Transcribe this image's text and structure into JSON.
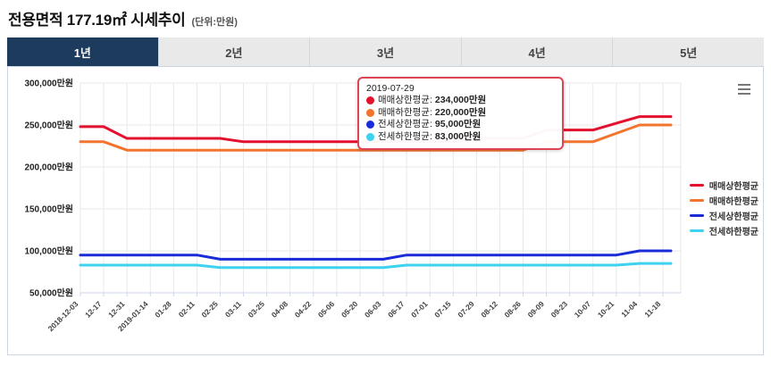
{
  "page": {
    "title": "전용면적 177.19㎡ 시세추이",
    "unit_note": "(단위:만원)"
  },
  "tabs": [
    {
      "label": "1년",
      "active": true
    },
    {
      "label": "2년",
      "active": false
    },
    {
      "label": "3년",
      "active": false
    },
    {
      "label": "4년",
      "active": false
    },
    {
      "label": "5년",
      "active": false
    }
  ],
  "tooltip": {
    "date": "2019-07-29",
    "rows": [
      {
        "label": "매매상한평균:",
        "value": "234,000만원"
      },
      {
        "label": "매매하한평균:",
        "value": "220,000만원"
      },
      {
        "label": "전세상한평균:",
        "value": "95,000만원"
      },
      {
        "label": "전세하한평균:",
        "value": "83,000만원"
      }
    ]
  },
  "icons": {
    "export_menu": "hamburger-icon"
  },
  "colors": {
    "active_tab": "#1d3b5c",
    "tooltip_border": "#dd4455",
    "grid": "#e9e9e9",
    "axis_line": "#ccd6eb"
  },
  "chart_data": {
    "type": "line",
    "title": "전용면적 177.19㎡ 시세추이",
    "unit": "만원",
    "grid": true,
    "legend_position": "right",
    "ylim": [
      50000,
      300000
    ],
    "yticks": [
      {
        "value": 300000,
        "label": "300,000만원"
      },
      {
        "value": 250000,
        "label": "250,000만원"
      },
      {
        "value": 200000,
        "label": "200,000만원"
      },
      {
        "value": 150000,
        "label": "150,000만원"
      },
      {
        "value": 100000,
        "label": "100,000만원"
      },
      {
        "value": 50000,
        "label": "50,000만원"
      }
    ],
    "x": [
      "2018-12-03",
      "12-17",
      "12-31",
      "2019-01-14",
      "01-28",
      "02-11",
      "02-25",
      "03-11",
      "03-25",
      "04-08",
      "04-22",
      "05-06",
      "05-20",
      "06-03",
      "06-17",
      "07-01",
      "07-15",
      "07-29",
      "08-12",
      "08-26",
      "09-09",
      "09-23",
      "10-07",
      "10-21",
      "11-04",
      "11-18"
    ],
    "series": [
      {
        "name": "매매상한평균",
        "color": "#e3112d",
        "values": [
          248000,
          248000,
          234000,
          234000,
          234000,
          234000,
          234000,
          230000,
          230000,
          230000,
          230000,
          230000,
          230000,
          230000,
          230000,
          230000,
          230000,
          234000,
          234000,
          234000,
          244000,
          244000,
          244000,
          252000,
          260000,
          260000
        ]
      },
      {
        "name": "매매하한평균",
        "color": "#f2742f",
        "values": [
          230000,
          230000,
          220000,
          220000,
          220000,
          220000,
          220000,
          220000,
          220000,
          220000,
          220000,
          220000,
          220000,
          220000,
          220000,
          220000,
          220000,
          220000,
          220000,
          220000,
          230000,
          230000,
          230000,
          240000,
          250000,
          250000
        ]
      },
      {
        "name": "전세상한평균",
        "color": "#1a2bd8",
        "values": [
          95000,
          95000,
          95000,
          95000,
          95000,
          95000,
          90000,
          90000,
          90000,
          90000,
          90000,
          90000,
          90000,
          90000,
          95000,
          95000,
          95000,
          95000,
          95000,
          95000,
          95000,
          95000,
          95000,
          95000,
          100000,
          100000
        ]
      },
      {
        "name": "전세하한평균",
        "color": "#3cd2f0",
        "values": [
          83000,
          83000,
          83000,
          83000,
          83000,
          83000,
          80000,
          80000,
          80000,
          80000,
          80000,
          80000,
          80000,
          80000,
          83000,
          83000,
          83000,
          83000,
          83000,
          83000,
          83000,
          83000,
          83000,
          83000,
          85000,
          85000
        ]
      }
    ]
  }
}
